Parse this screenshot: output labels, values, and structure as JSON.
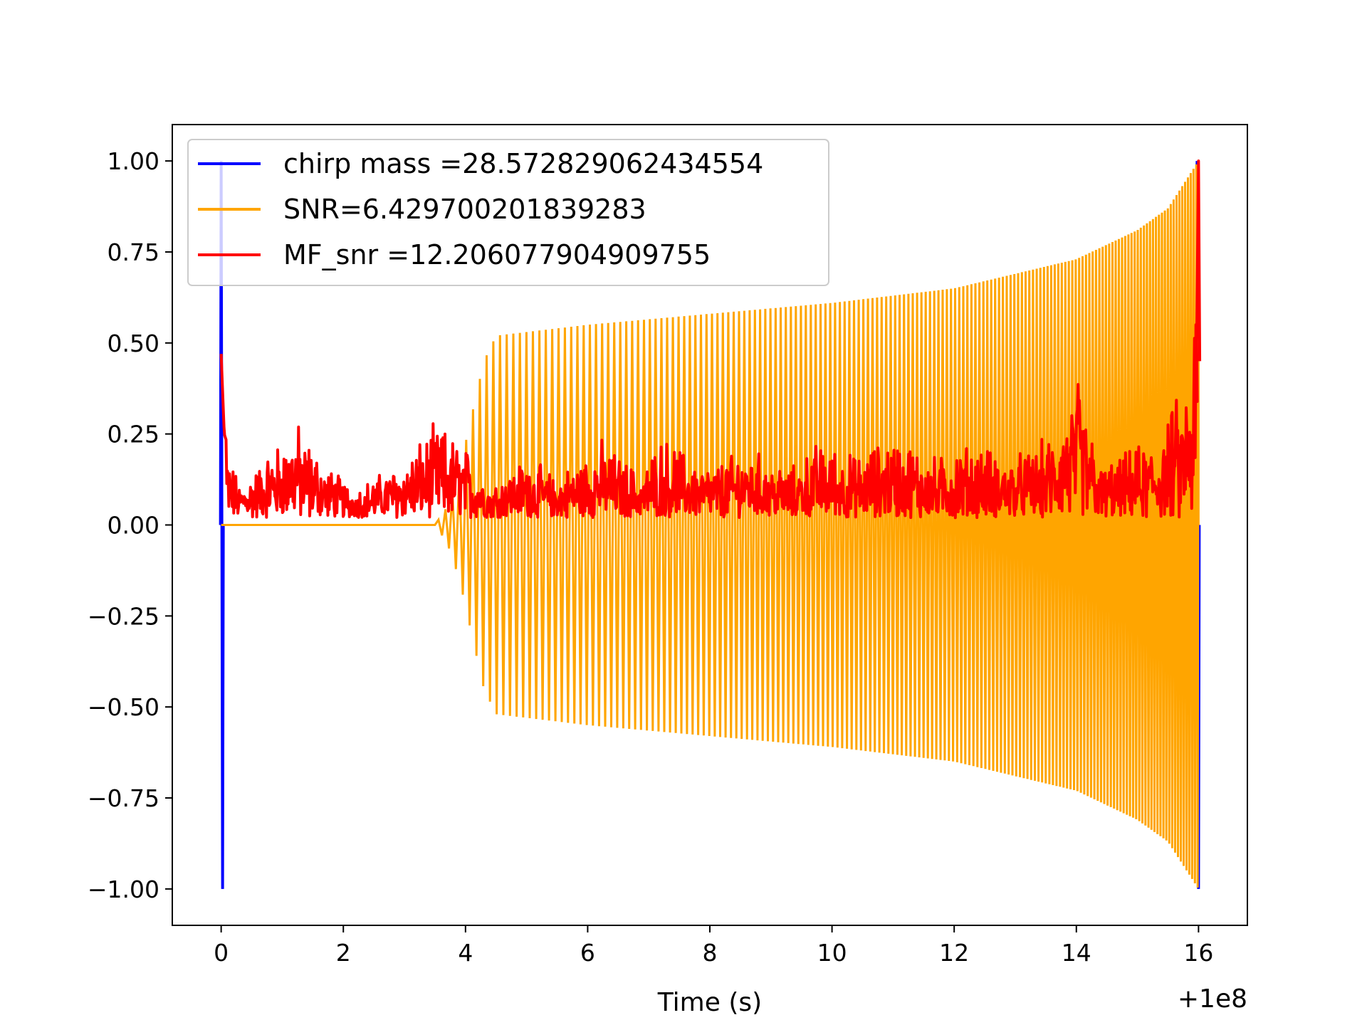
{
  "chart_data": {
    "type": "line",
    "title": "",
    "xlabel": "Time (s)",
    "ylabel": "",
    "x_offset_label": "+1e8",
    "xlim": [
      -0.8,
      16.8
    ],
    "ylim": [
      -1.1,
      1.1
    ],
    "x_ticks": [
      0,
      2,
      4,
      6,
      8,
      10,
      12,
      14,
      16
    ],
    "y_ticks": [
      1.0,
      0.75,
      0.5,
      0.25,
      0.0,
      -0.25,
      -0.5,
      -0.75,
      -1.0
    ],
    "x_tick_labels": [
      "0",
      "2",
      "4",
      "6",
      "8",
      "10",
      "12",
      "14",
      "16"
    ],
    "y_tick_labels": [
      "1.00",
      "0.75",
      "0.50",
      "0.25",
      "0.00",
      "−0.25",
      "−0.50",
      "−0.75",
      "−1.00"
    ],
    "grid": false,
    "legend_position": "top-left",
    "series": [
      {
        "name": "chirp mass =28.572829062434554",
        "color": "#0000ff",
        "description_points": {
          "x": [
            0.0,
            16.0
          ],
          "y_min": [
            -1.0,
            -1.0
          ],
          "y_max": [
            1.0,
            1.0
          ]
        }
      },
      {
        "name": "SNR=6.429700201839283",
        "color": "#ffa500",
        "envelope": {
          "x": [
            0.0,
            3.5,
            3.7,
            3.9,
            4.1,
            4.3,
            4.5,
            6.0,
            8.0,
            10.0,
            12.0,
            14.0,
            15.0,
            15.5,
            16.0
          ],
          "amplitude": [
            0.0,
            0.0,
            0.05,
            0.15,
            0.3,
            0.45,
            0.52,
            0.55,
            0.58,
            0.61,
            0.65,
            0.73,
            0.81,
            0.87,
            1.0
          ]
        }
      },
      {
        "name": "MF_snr =12.206077904909755",
        "color": "#ff0000",
        "points": {
          "x": [
            0.0,
            0.05,
            0.3,
            0.8,
            1.25,
            1.7,
            2.2,
            2.9,
            3.55,
            4.0,
            4.4,
            5.0,
            5.5,
            6.2,
            6.9,
            7.2,
            8.0,
            8.6,
            9.3,
            9.8,
            10.4,
            11.0,
            11.7,
            12.3,
            13.0,
            13.6,
            14.05,
            14.4,
            15.0,
            15.3,
            15.9,
            16.0
          ],
          "y": [
            0.47,
            0.25,
            0.12,
            0.22,
            0.3,
            0.18,
            0.11,
            0.18,
            0.3,
            0.23,
            0.12,
            0.2,
            0.14,
            0.25,
            0.15,
            0.26,
            0.17,
            0.23,
            0.16,
            0.25,
            0.2,
            0.27,
            0.2,
            0.24,
            0.2,
            0.26,
            0.44,
            0.17,
            0.23,
            0.26,
            0.45,
            1.0
          ]
        }
      }
    ]
  }
}
